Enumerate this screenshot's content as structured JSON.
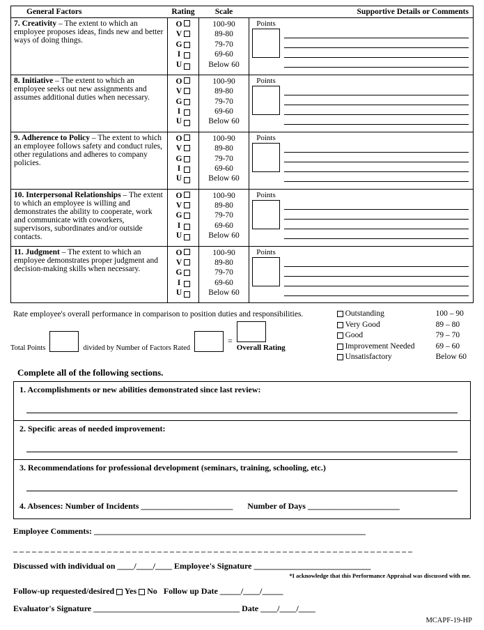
{
  "headers": {
    "factors": "General Factors",
    "rating": "Rating",
    "scale": "Scale",
    "comments": "Supportive  Details or Comments"
  },
  "rating_letters": [
    "O",
    "V",
    "G",
    "I",
    "U"
  ],
  "scale_values": [
    "100-90",
    "89-80",
    "79-70",
    "69-60",
    "Below 60"
  ],
  "points_label": "Points",
  "rows": [
    {
      "num": "7.",
      "title": "Creativity",
      "desc": " – The extent to which an employee proposes ideas, finds new and better ways of doing things."
    },
    {
      "num": "8.",
      "title": "Initiative",
      "desc": " – The extent to which an employee seeks out new assignments and assumes additional duties when necessary."
    },
    {
      "num": "9.",
      "title": "Adherence to Policy",
      "desc": " – The extent to which an employee follows safety and conduct rules, other regulations and adheres to company policies."
    },
    {
      "num": "10.",
      "title": "Interpersonal Relationships",
      "desc": " – The extent to which an employee is willing and demonstrates the ability to cooperate, work and communicate with coworkers, supervisors, subordinates and/or outside contacts."
    },
    {
      "num": "11.",
      "title": "Judgment",
      "desc": " – The extent to which an employee demonstrates proper judgment and decision-making skills when necessary."
    }
  ],
  "rate_note": "Rate employee's overall performance in comparison to position duties and responsibilities.",
  "legend": [
    {
      "label": "Outstanding",
      "range": "100 – 90"
    },
    {
      "label": "Very Good",
      "range": "89 – 80"
    },
    {
      "label": "Good",
      "range": "79 – 70"
    },
    {
      "label": "Improvement Needed",
      "range": "69 – 60"
    },
    {
      "label": "Unsatisfactory",
      "range": "Below 60"
    }
  ],
  "calc": {
    "total_points": "Total Points",
    "divided": "divided by Number of Factors Rated",
    "equals": "=",
    "overall": "Overall Rating"
  },
  "sections_header": "Complete all of the following sections.",
  "sections": [
    {
      "title": "1. Accomplishments  or new abilities demonstrated  since last review:"
    },
    {
      "title": "2. Specific areas of needed improvement:"
    },
    {
      "title": "3.  Recommendations  for professional development  (seminars, training,  schooling, etc.)"
    }
  ],
  "absences": {
    "prefix": "4.  Absences:    Number of Incidents",
    "days": "Number of Days"
  },
  "emp_comments": "Employee Comments:",
  "discussed": "Discussed with individual on ____/____/____   Employee's Signature ____________________________",
  "ack": "*I acknowledge that this Performance Appraisal was discussed with me.",
  "followup": "Follow-up requested/desired",
  "yes": "Yes",
  "no": "No",
  "fudate": "Follow up Date _____/____/_____",
  "evaluator": "Evaluator's Signature ___________________________________            Date ____/____/____",
  "footer": "MCAPF-19-HP"
}
